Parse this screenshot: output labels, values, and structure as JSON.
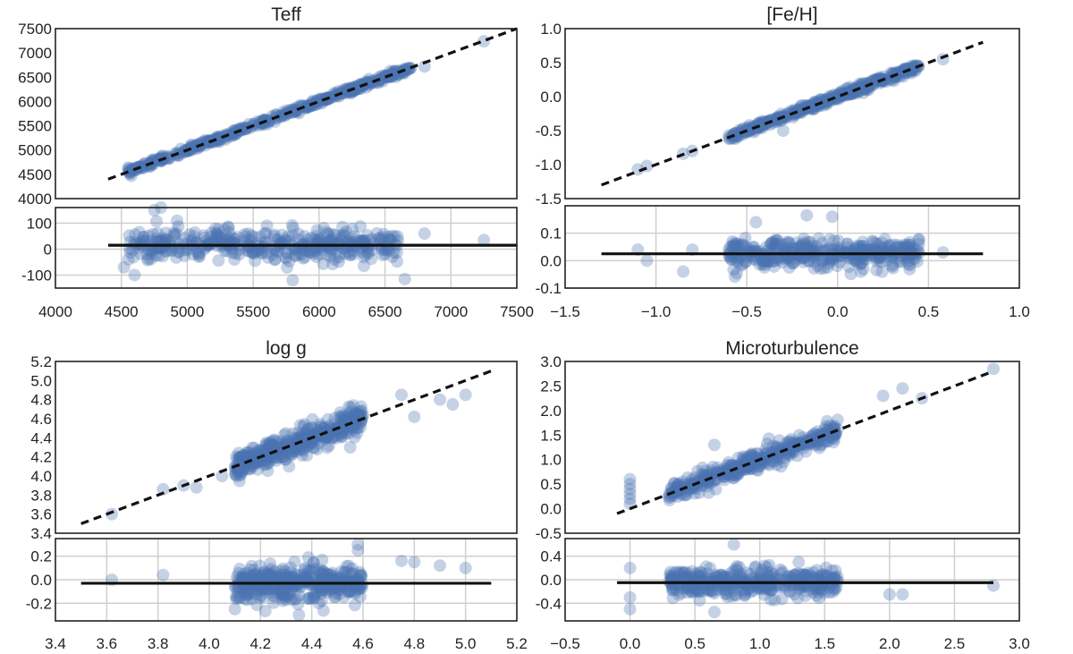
{
  "chart_data": [
    {
      "type": "scatter",
      "title": "Teff",
      "main": {
        "xlim": [
          4000,
          7500
        ],
        "ylim": [
          4000,
          7500
        ],
        "yticks": [
          4000,
          4500,
          5000,
          5500,
          6000,
          6500,
          7000,
          7500
        ],
        "one_to_one_line": [
          [
            4400,
            4400
          ],
          [
            7500,
            7500
          ]
        ],
        "cloud": {
          "x_range": [
            4550,
            6700
          ],
          "scatter": 30,
          "n": 420
        },
        "outliers": [
          [
            7250,
            7240
          ],
          [
            6800,
            6720
          ],
          [
            6650,
            6640
          ],
          [
            6600,
            6560
          ]
        ]
      },
      "residual": {
        "ylim": [
          -150,
          160
        ],
        "yticks": [
          -100,
          0,
          100
        ],
        "offset": 15,
        "cloud": {
          "x_range": [
            4550,
            6600
          ],
          "scatter": 30,
          "n": 420
        },
        "outliers": [
          [
            4800,
            160
          ],
          [
            4750,
            150
          ],
          [
            5800,
            -120
          ],
          [
            6650,
            -115
          ],
          [
            7250,
            35
          ],
          [
            6800,
            60
          ],
          [
            4600,
            -100
          ],
          [
            4520,
            -70
          ]
        ]
      },
      "xticks": [
        4000,
        4500,
        5000,
        5500,
        6000,
        6500,
        7000,
        7500
      ]
    },
    {
      "type": "scatter",
      "title": "[Fe/H]",
      "main": {
        "xlim": [
          -1.5,
          1.0
        ],
        "ylim": [
          -1.5,
          1.0
        ],
        "yticks": [
          -1.5,
          -1.0,
          -0.5,
          0.0,
          0.5,
          1.0
        ],
        "one_to_one_line": [
          [
            -1.3,
            -1.3
          ],
          [
            0.8,
            0.8
          ]
        ],
        "cloud": {
          "x_range": [
            -0.6,
            0.45
          ],
          "scatter": 0.03,
          "n": 380
        },
        "outliers": [
          [
            -1.1,
            -1.07
          ],
          [
            -1.05,
            -1.02
          ],
          [
            -0.85,
            -0.84
          ],
          [
            -0.8,
            -0.8
          ],
          [
            0.58,
            0.55
          ],
          [
            -0.3,
            -0.5
          ]
        ]
      },
      "residual": {
        "ylim": [
          -0.1,
          0.2
        ],
        "yticks": [
          -0.1,
          0.0,
          0.1
        ],
        "offset": 0.025,
        "cloud": {
          "x_range": [
            -0.6,
            0.45
          ],
          "scatter": 0.025,
          "n": 380
        },
        "outliers": [
          [
            -0.17,
            0.165
          ],
          [
            -0.03,
            0.16
          ],
          [
            -0.45,
            0.14
          ],
          [
            -1.1,
            0.04
          ],
          [
            -1.05,
            0.0
          ],
          [
            -0.85,
            -0.04
          ],
          [
            0.58,
            0.03
          ],
          [
            -0.8,
            0.04
          ]
        ]
      },
      "xticks": [
        -1.5,
        -1.0,
        -0.5,
        0.0,
        0.5,
        1.0
      ]
    },
    {
      "type": "scatter",
      "title": "log g",
      "main": {
        "xlim": [
          3.4,
          5.2
        ],
        "ylim": [
          3.4,
          5.2
        ],
        "yticks": [
          3.4,
          3.6,
          3.8,
          4.0,
          4.2,
          4.4,
          4.6,
          4.8,
          5.0,
          5.2
        ],
        "one_to_one_line": [
          [
            3.5,
            3.5
          ],
          [
            5.1,
            5.1
          ]
        ],
        "cloud": {
          "x_range": [
            4.1,
            4.6
          ],
          "scatter": 0.07,
          "n": 420
        },
        "outliers": [
          [
            3.62,
            3.6
          ],
          [
            3.82,
            3.86
          ],
          [
            3.9,
            3.9
          ],
          [
            3.95,
            3.88
          ],
          [
            4.05,
            4.0
          ],
          [
            4.55,
            4.3
          ],
          [
            4.8,
            4.62
          ],
          [
            4.9,
            4.8
          ],
          [
            4.95,
            4.75
          ],
          [
            5.0,
            4.85
          ],
          [
            4.75,
            4.85
          ]
        ]
      },
      "residual": {
        "ylim": [
          -0.35,
          0.35
        ],
        "yticks": [
          -0.2,
          0.0,
          0.2
        ],
        "offset": -0.03,
        "cloud": {
          "x_range": [
            4.1,
            4.6
          ],
          "scatter": 0.07,
          "n": 420
        },
        "outliers": [
          [
            4.58,
            0.3
          ],
          [
            4.58,
            0.25
          ],
          [
            4.1,
            -0.25
          ],
          [
            4.35,
            -0.3
          ],
          [
            3.62,
            0.0
          ],
          [
            3.82,
            0.04
          ],
          [
            4.8,
            0.15
          ],
          [
            4.9,
            0.12
          ],
          [
            5.0,
            0.1
          ],
          [
            4.75,
            0.16
          ]
        ]
      },
      "xticks": [
        3.4,
        3.6,
        3.8,
        4.0,
        4.2,
        4.4,
        4.6,
        4.8,
        5.0,
        5.2
      ]
    },
    {
      "type": "scatter",
      "title": "Microturbulence",
      "main": {
        "xlim": [
          -0.5,
          3.0
        ],
        "ylim": [
          -0.5,
          3.0
        ],
        "yticks": [
          -0.5,
          0.0,
          0.5,
          1.0,
          1.5,
          2.0,
          2.5,
          3.0
        ],
        "one_to_one_line": [
          [
            -0.1,
            -0.1
          ],
          [
            2.8,
            2.8
          ]
        ],
        "cloud": {
          "x_range": [
            0.3,
            1.6
          ],
          "scatter": 0.1,
          "n": 380
        },
        "outliers": [
          [
            0.0,
            0.6
          ],
          [
            0.0,
            0.5
          ],
          [
            0.0,
            0.4
          ],
          [
            0.0,
            0.3
          ],
          [
            0.0,
            0.2
          ],
          [
            0.0,
            0.1
          ],
          [
            0.65,
            1.3
          ],
          [
            1.95,
            2.3
          ],
          [
            2.1,
            2.45
          ],
          [
            2.25,
            2.25
          ],
          [
            2.8,
            2.85
          ]
        ]
      },
      "residual": {
        "ylim": [
          -0.7,
          0.7
        ],
        "yticks": [
          -0.4,
          0.0,
          0.4
        ],
        "offset": -0.05,
        "cloud": {
          "x_range": [
            0.3,
            1.6
          ],
          "scatter": 0.12,
          "n": 380
        },
        "outliers": [
          [
            0.0,
            -0.5
          ],
          [
            0.0,
            -0.3
          ],
          [
            0.0,
            0.2
          ],
          [
            0.8,
            0.6
          ],
          [
            0.65,
            -0.55
          ],
          [
            2.0,
            -0.25
          ],
          [
            2.1,
            -0.25
          ],
          [
            2.8,
            -0.1
          ],
          [
            1.3,
            0.3
          ]
        ]
      },
      "xticks": [
        -0.5,
        0.0,
        0.5,
        1.0,
        1.5,
        2.0,
        2.5,
        3.0
      ]
    }
  ]
}
